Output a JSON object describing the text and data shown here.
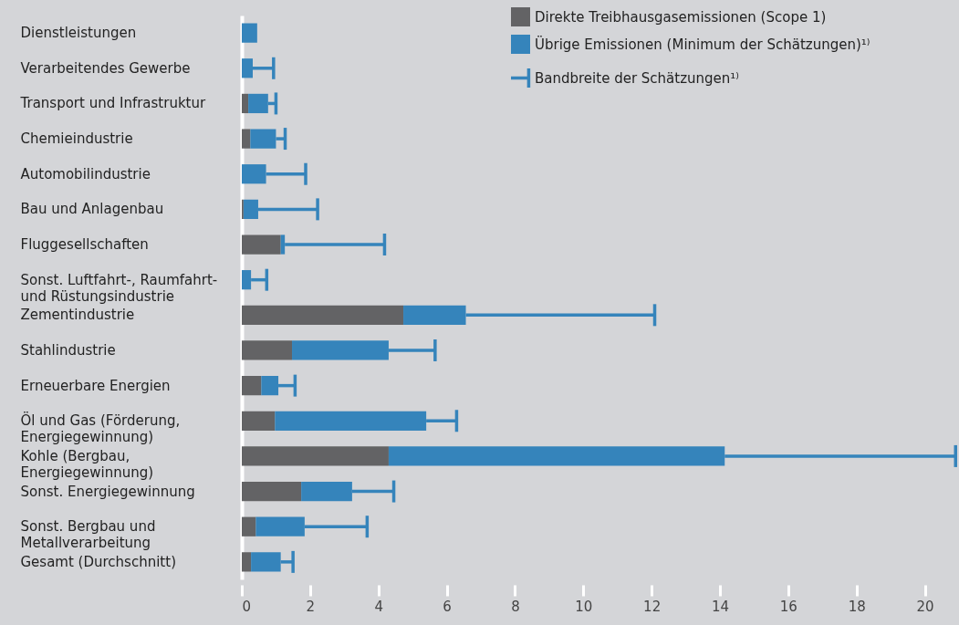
{
  "chart_data": {
    "type": "bar",
    "orientation": "horizontal",
    "stacked": true,
    "categories": [
      "Dienstleistungen",
      "Verarbeitendes Gewerbe",
      "Transport und Infrastruktur",
      "Chemieindustrie",
      "Automobilindustrie",
      "Bau und Anlagenbau",
      "Fluggesellschaften",
      "Sonst. Luftfahrt-, Raumfahrt-\nund Rüstungsindustrie",
      "Zementindustrie",
      "Stahlindustrie",
      "Erneuerbare Energien",
      "Öl und Gas (Förderung,\nEnergiegewinnung)",
      "Kohle (Bergbau,\nEnergiegewinnung)",
      "Sonst. Energiegewinnung",
      "Sonst. Bergbau und\nMetallverarbeitung",
      "Gesamt (Durchschnitt)"
    ],
    "series": [
      {
        "name": "Direkte Treibhausgasemissionen (Scope 1)",
        "color": "#636365",
        "values": [
          0,
          0,
          0.19,
          0.25,
          0,
          0.05,
          1.14,
          0,
          4.73,
          1.47,
          0.57,
          0.97,
          4.3,
          1.74,
          0.41,
          0.27
        ]
      },
      {
        "name": "Übrige Emissionen (Minimum der Schätzungen)¹⁾",
        "color": "#3584bb",
        "values": [
          0.45,
          0.32,
          0.58,
          0.75,
          0.71,
          0.43,
          0.12,
          0.27,
          1.83,
          2.83,
          0.5,
          4.43,
          9.84,
          1.49,
          1.43,
          0.87
        ],
        "errors": [
          null,
          [
            0.32,
            0.93
          ],
          [
            0.77,
            1.0
          ],
          [
            1.0,
            1.27
          ],
          [
            0.71,
            1.87
          ],
          [
            0.48,
            2.22
          ],
          [
            1.26,
            4.18
          ],
          [
            0.27,
            0.73
          ],
          [
            6.56,
            12.09
          ],
          [
            4.3,
            5.66
          ],
          [
            1.07,
            1.56
          ],
          [
            5.4,
            6.29
          ],
          [
            14.14,
            20.9
          ],
          [
            3.23,
            4.45
          ],
          [
            1.84,
            3.67
          ],
          [
            1.14,
            1.5
          ]
        ]
      }
    ],
    "annotations": [
      "Bandbreite der Schätzungen¹⁾"
    ],
    "xlim": [
      0,
      21
    ],
    "xticks": [
      0,
      2,
      4,
      6,
      8,
      10,
      12,
      14,
      16,
      18,
      20
    ],
    "legend": "top right",
    "grid": false
  }
}
